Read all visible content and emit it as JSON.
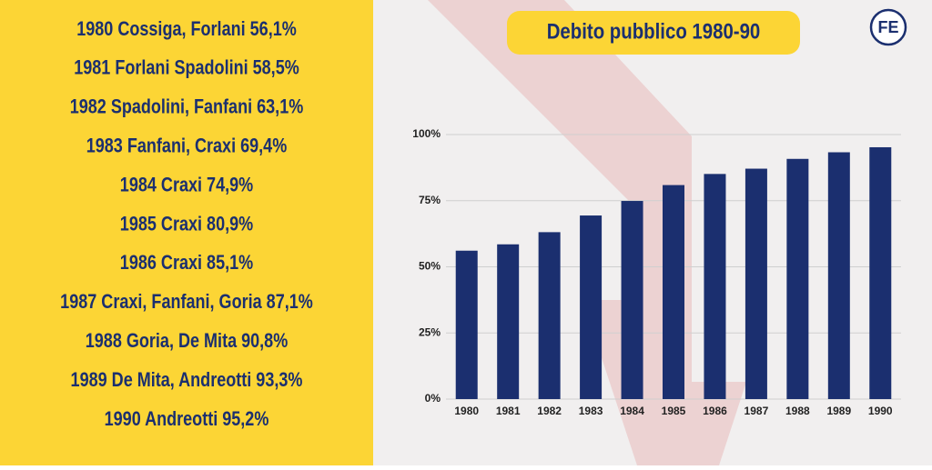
{
  "chart_data": {
    "type": "bar",
    "title": "Debito pubblico 1980-90",
    "categories": [
      "1980",
      "1981",
      "1982",
      "1983",
      "1984",
      "1985",
      "1986",
      "1987",
      "1988",
      "1989",
      "1990"
    ],
    "values": [
      56.1,
      58.5,
      63.1,
      69.4,
      74.9,
      80.9,
      85.1,
      87.1,
      90.8,
      93.3,
      95.2
    ],
    "color": "#1b2f6f",
    "ylim": [
      0,
      100
    ],
    "yticks": [
      {
        "value": 0,
        "label": "0%"
      },
      {
        "value": 25,
        "label": "25%"
      },
      {
        "value": 50,
        "label": "50%"
      },
      {
        "value": 75,
        "label": "75%"
      },
      {
        "value": 100,
        "label": "100%"
      }
    ],
    "grid": true
  },
  "list": [
    "1980 Cossiga, Forlani 56,1%",
    "1981 Forlani Spadolini 58,5%",
    "1982 Spadolini, Fanfani 63,1%",
    "1983 Fanfani, Craxi 69,4%",
    "1984 Craxi 74,9%",
    "1985 Craxi 80,9%",
    "1986 Craxi 85,1%",
    "1987 Craxi, Fanfani, Goria 87,1%",
    "1988 Goria, De Mita 90,8%",
    "1989 De Mita, Andreotti 93,3%",
    "1990 Andreotti 95,2%"
  ],
  "logo": "FE"
}
